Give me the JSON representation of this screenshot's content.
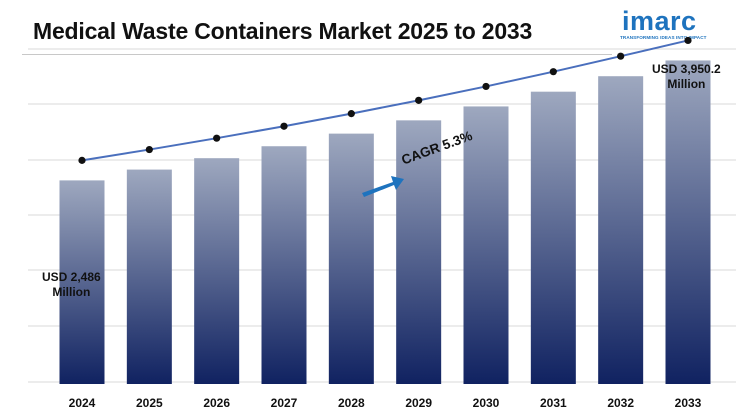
{
  "header": {
    "title": "Medical Waste Containers Market 2025 to 2033",
    "logo_text": "imarc",
    "logo_tagline": "TRANSFORMING IDEAS INTO IMPACT"
  },
  "chart_data": {
    "type": "bar",
    "title": "Medical Waste Containers Market 2025 to 2033",
    "categories": [
      "2024",
      "2025",
      "2026",
      "2027",
      "2028",
      "2029",
      "2030",
      "2031",
      "2032",
      "2033"
    ],
    "series": [
      {
        "values": [
          2486,
          2618,
          2757,
          2903,
          3057,
          3219,
          3389,
          3569,
          3758,
          3950.2
        ]
      }
    ],
    "units": "USD Million",
    "ylim": [
      0,
      4200
    ],
    "grid": true,
    "bar_gradient": [
      "#9ea8bf",
      "#102261"
    ],
    "line_color": "#4a6fbd",
    "point_color": "#111111",
    "annotations": {
      "start_label_line1": "USD 2,486",
      "start_label_line2": "Million",
      "end_label_line1": "USD 3,950.2",
      "end_label_line2": "Million",
      "cagr_label": "CAGR 5.3%"
    }
  }
}
